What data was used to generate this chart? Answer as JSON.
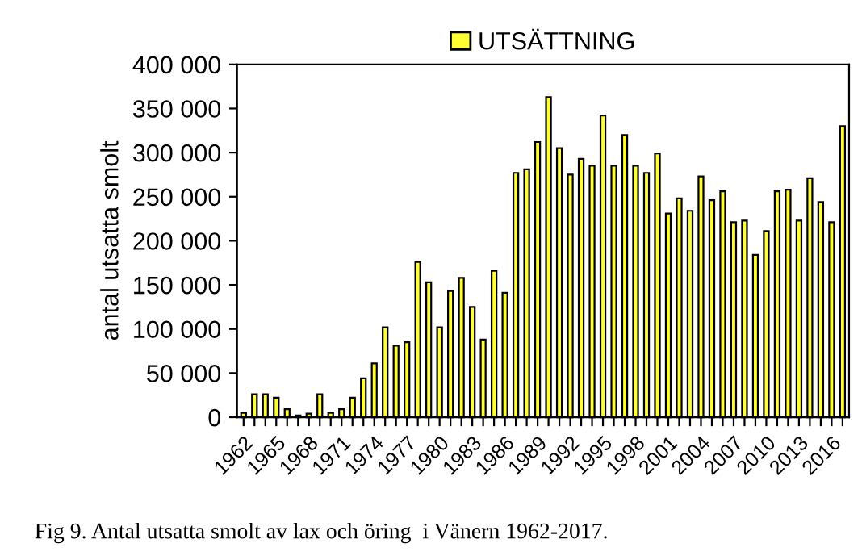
{
  "chart_data": {
    "type": "bar",
    "categories": [
      "1962",
      null,
      null,
      "1965",
      null,
      null,
      "1968",
      null,
      null,
      "1971",
      null,
      null,
      "1974",
      null,
      null,
      "1977",
      null,
      null,
      "1980",
      null,
      null,
      "1983",
      null,
      null,
      "1986",
      null,
      null,
      "1989",
      null,
      null,
      "1992",
      null,
      null,
      "1995",
      null,
      null,
      "1998",
      null,
      null,
      "2001",
      null,
      null,
      "2004",
      null,
      null,
      "2007",
      null,
      null,
      "2010",
      null,
      null,
      "2013",
      null,
      null,
      "2016",
      null
    ],
    "series": [
      {
        "name": "UTSÄTTNING",
        "color": "#ffff33",
        "values": [
          5000,
          26000,
          26000,
          22000,
          9000,
          2000,
          4000,
          26000,
          5000,
          9000,
          22000,
          44000,
          61000,
          102000,
          81000,
          85000,
          176000,
          153000,
          102000,
          143000,
          158000,
          125000,
          88000,
          166000,
          141000,
          277000,
          281000,
          312000,
          363000,
          305000,
          275000,
          293000,
          285000,
          342000,
          285000,
          320000,
          285000,
          277000,
          299000,
          231000,
          248000,
          234000,
          273000,
          246000,
          256000,
          221000,
          223000,
          184000,
          211000,
          256000,
          258000,
          223000,
          271000,
          244000,
          221000,
          330000
        ]
      }
    ],
    "ylabel": "antal utsatta smolt",
    "ylim": [
      0,
      400000
    ],
    "yticks": [
      {
        "value": 0,
        "label": "0"
      },
      {
        "value": 50000,
        "label": "50 000"
      },
      {
        "value": 100000,
        "label": "100 000"
      },
      {
        "value": 150000,
        "label": "150 000"
      },
      {
        "value": 200000,
        "label": "200 000"
      },
      {
        "value": 250000,
        "label": "250 000"
      },
      {
        "value": 300000,
        "label": "300 000"
      },
      {
        "value": 350000,
        "label": "350 000"
      },
      {
        "value": 400000,
        "label": "400 000"
      }
    ],
    "legend": "top",
    "grid": false,
    "annotations": [
      "Fig 9. Antal utsatta smolt av lax och öring  i Vänern 1962-2017."
    ]
  }
}
